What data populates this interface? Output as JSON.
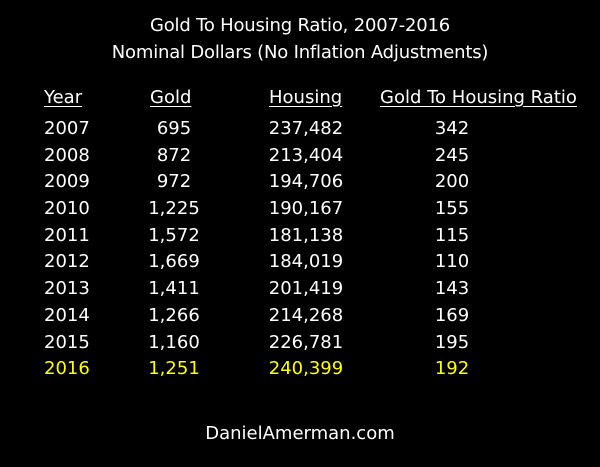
{
  "chart_data": {
    "type": "table",
    "title": "Gold To Housing Ratio, 2007-2016",
    "subtitle": "Nominal Dollars (No Inflation Adjustments)",
    "columns": [
      "Year",
      "Gold",
      "Housing",
      "Gold To Housing Ratio"
    ],
    "rows": [
      [
        "2007",
        "695",
        "237,482",
        "342"
      ],
      [
        "2008",
        "872",
        "213,404",
        "245"
      ],
      [
        "2009",
        "972",
        "194,706",
        "200"
      ],
      [
        "2010",
        "1,225",
        "190,167",
        "155"
      ],
      [
        "2011",
        "1,572",
        "181,138",
        "115"
      ],
      [
        "2012",
        "1,669",
        "184,019",
        "110"
      ],
      [
        "2013",
        "1,411",
        "201,419",
        "143"
      ],
      [
        "2014",
        "1,266",
        "214,268",
        "169"
      ],
      [
        "2015",
        "1,160",
        "226,781",
        "195"
      ],
      [
        "2016",
        "1,251",
        "240,399",
        "192"
      ]
    ],
    "highlight_row": "2016",
    "highlight_color": "#ffff00",
    "text_color": "#ffffff",
    "background_color": "#000000",
    "footer": "DanielAmerman.com"
  }
}
